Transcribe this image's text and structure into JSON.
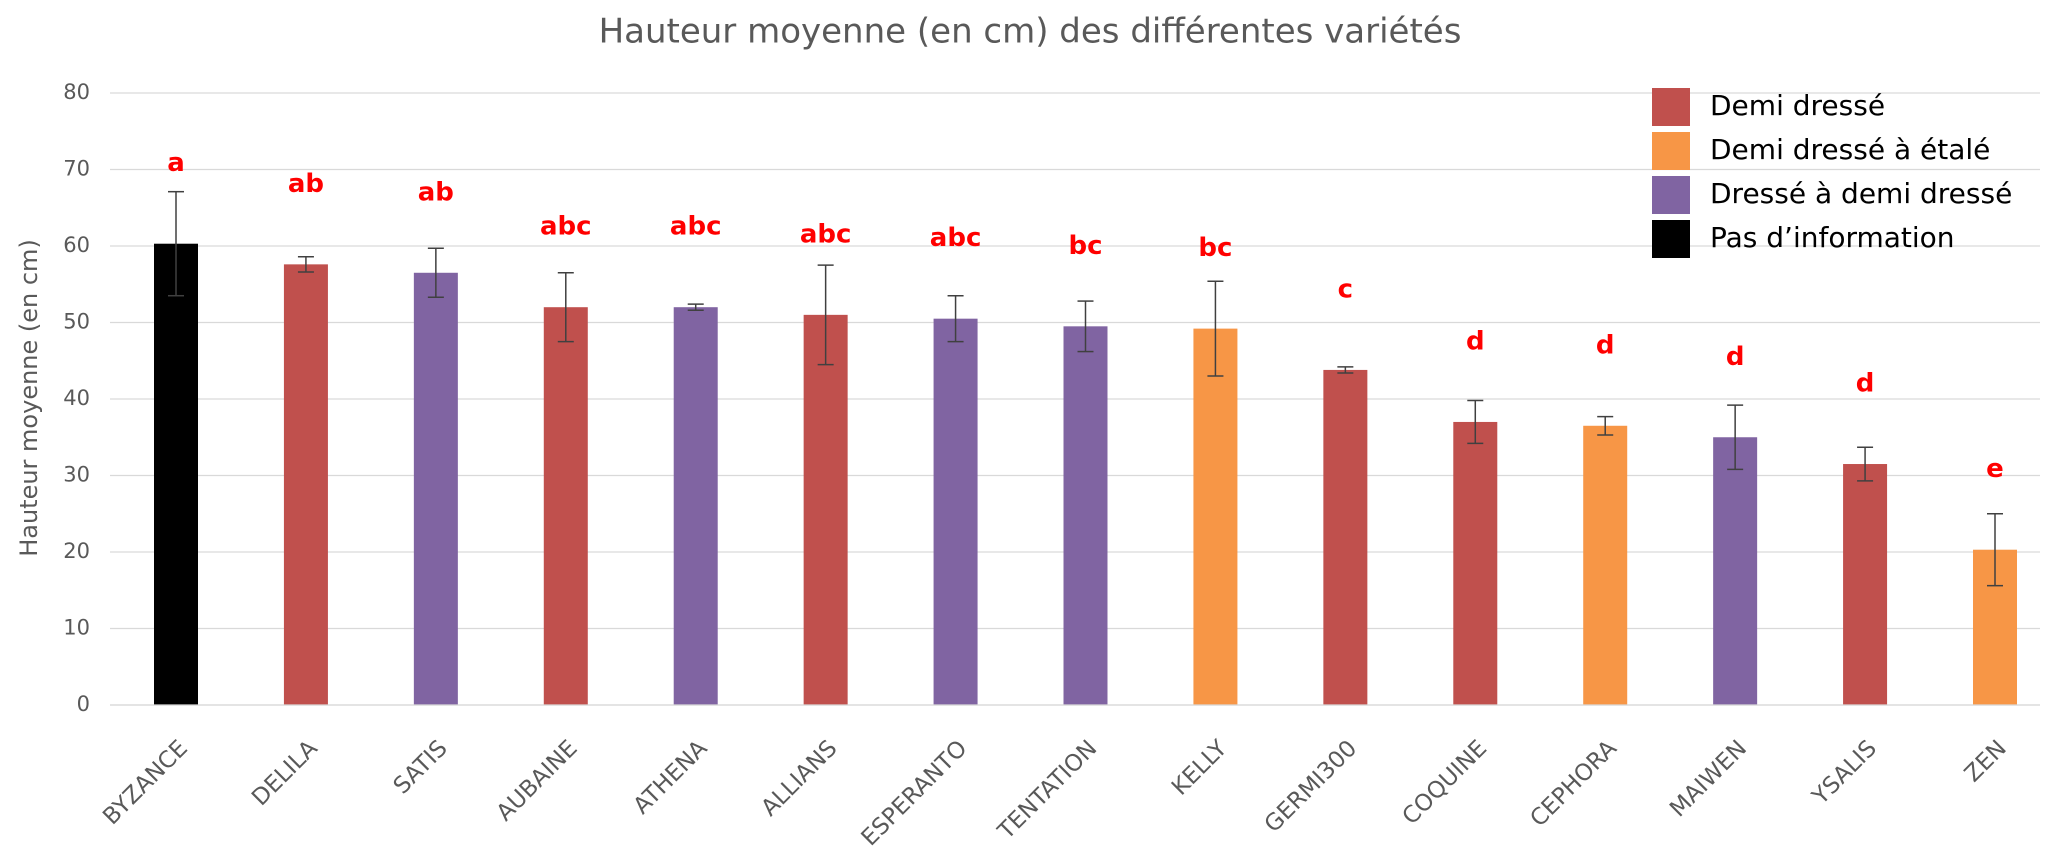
{
  "chart_data": {
    "type": "bar",
    "title": "Hauteur moyenne (en cm) des différentes variétés",
    "y_label": "Hauteur moyenne (en cm)",
    "categories": [
      "BYZANCE",
      "DELILA",
      "SATIS",
      "AUBAINE",
      "ATHENA",
      "ALLIANS",
      "ESPERANTO",
      "TENTATION",
      "KELLY",
      "GERMI300",
      "COQUINE",
      "CEPHORA",
      "MAIWEN",
      "YSALIS",
      "ZEN"
    ],
    "values": [
      60.3,
      57.6,
      56.5,
      52,
      52,
      51,
      50.5,
      49.5,
      49.2,
      43.8,
      37,
      36.5,
      35,
      31.5,
      20.3
    ],
    "errors": [
      6.8,
      1.0,
      3.2,
      4.5,
      0.4,
      6.5,
      3.0,
      3.3,
      6.2,
      0.4,
      2.8,
      1.2,
      4.2,
      2.2,
      4.7
    ],
    "letters": [
      "a",
      "ab",
      "ab",
      "abc",
      "abc",
      "abc",
      "abc",
      "bc",
      "bc",
      "c",
      "d",
      "d",
      "d",
      "d",
      "e"
    ],
    "colors": [
      "#000000",
      "#c0504d",
      "#8064a2",
      "#c0504d",
      "#8064a2",
      "#c0504d",
      "#8064a2",
      "#8064a2",
      "#f79646",
      "#c0504d",
      "#c0504d",
      "#f79646",
      "#8064a2",
      "#c0504d",
      "#f79646"
    ],
    "legend": [
      {
        "name": "Demi dressé",
        "color": "#c0504d"
      },
      {
        "name": "Demi dressé à étalé",
        "color": "#f79646"
      },
      {
        "name": "Dressé à demi dressé",
        "color": "#8064a2"
      },
      {
        "name": "Pas d’information",
        "color": "#000000"
      }
    ],
    "ylim": [
      0,
      80
    ],
    "yticks": [
      0,
      10,
      20,
      30,
      40,
      50,
      60,
      70,
      80
    ],
    "grid": true
  }
}
